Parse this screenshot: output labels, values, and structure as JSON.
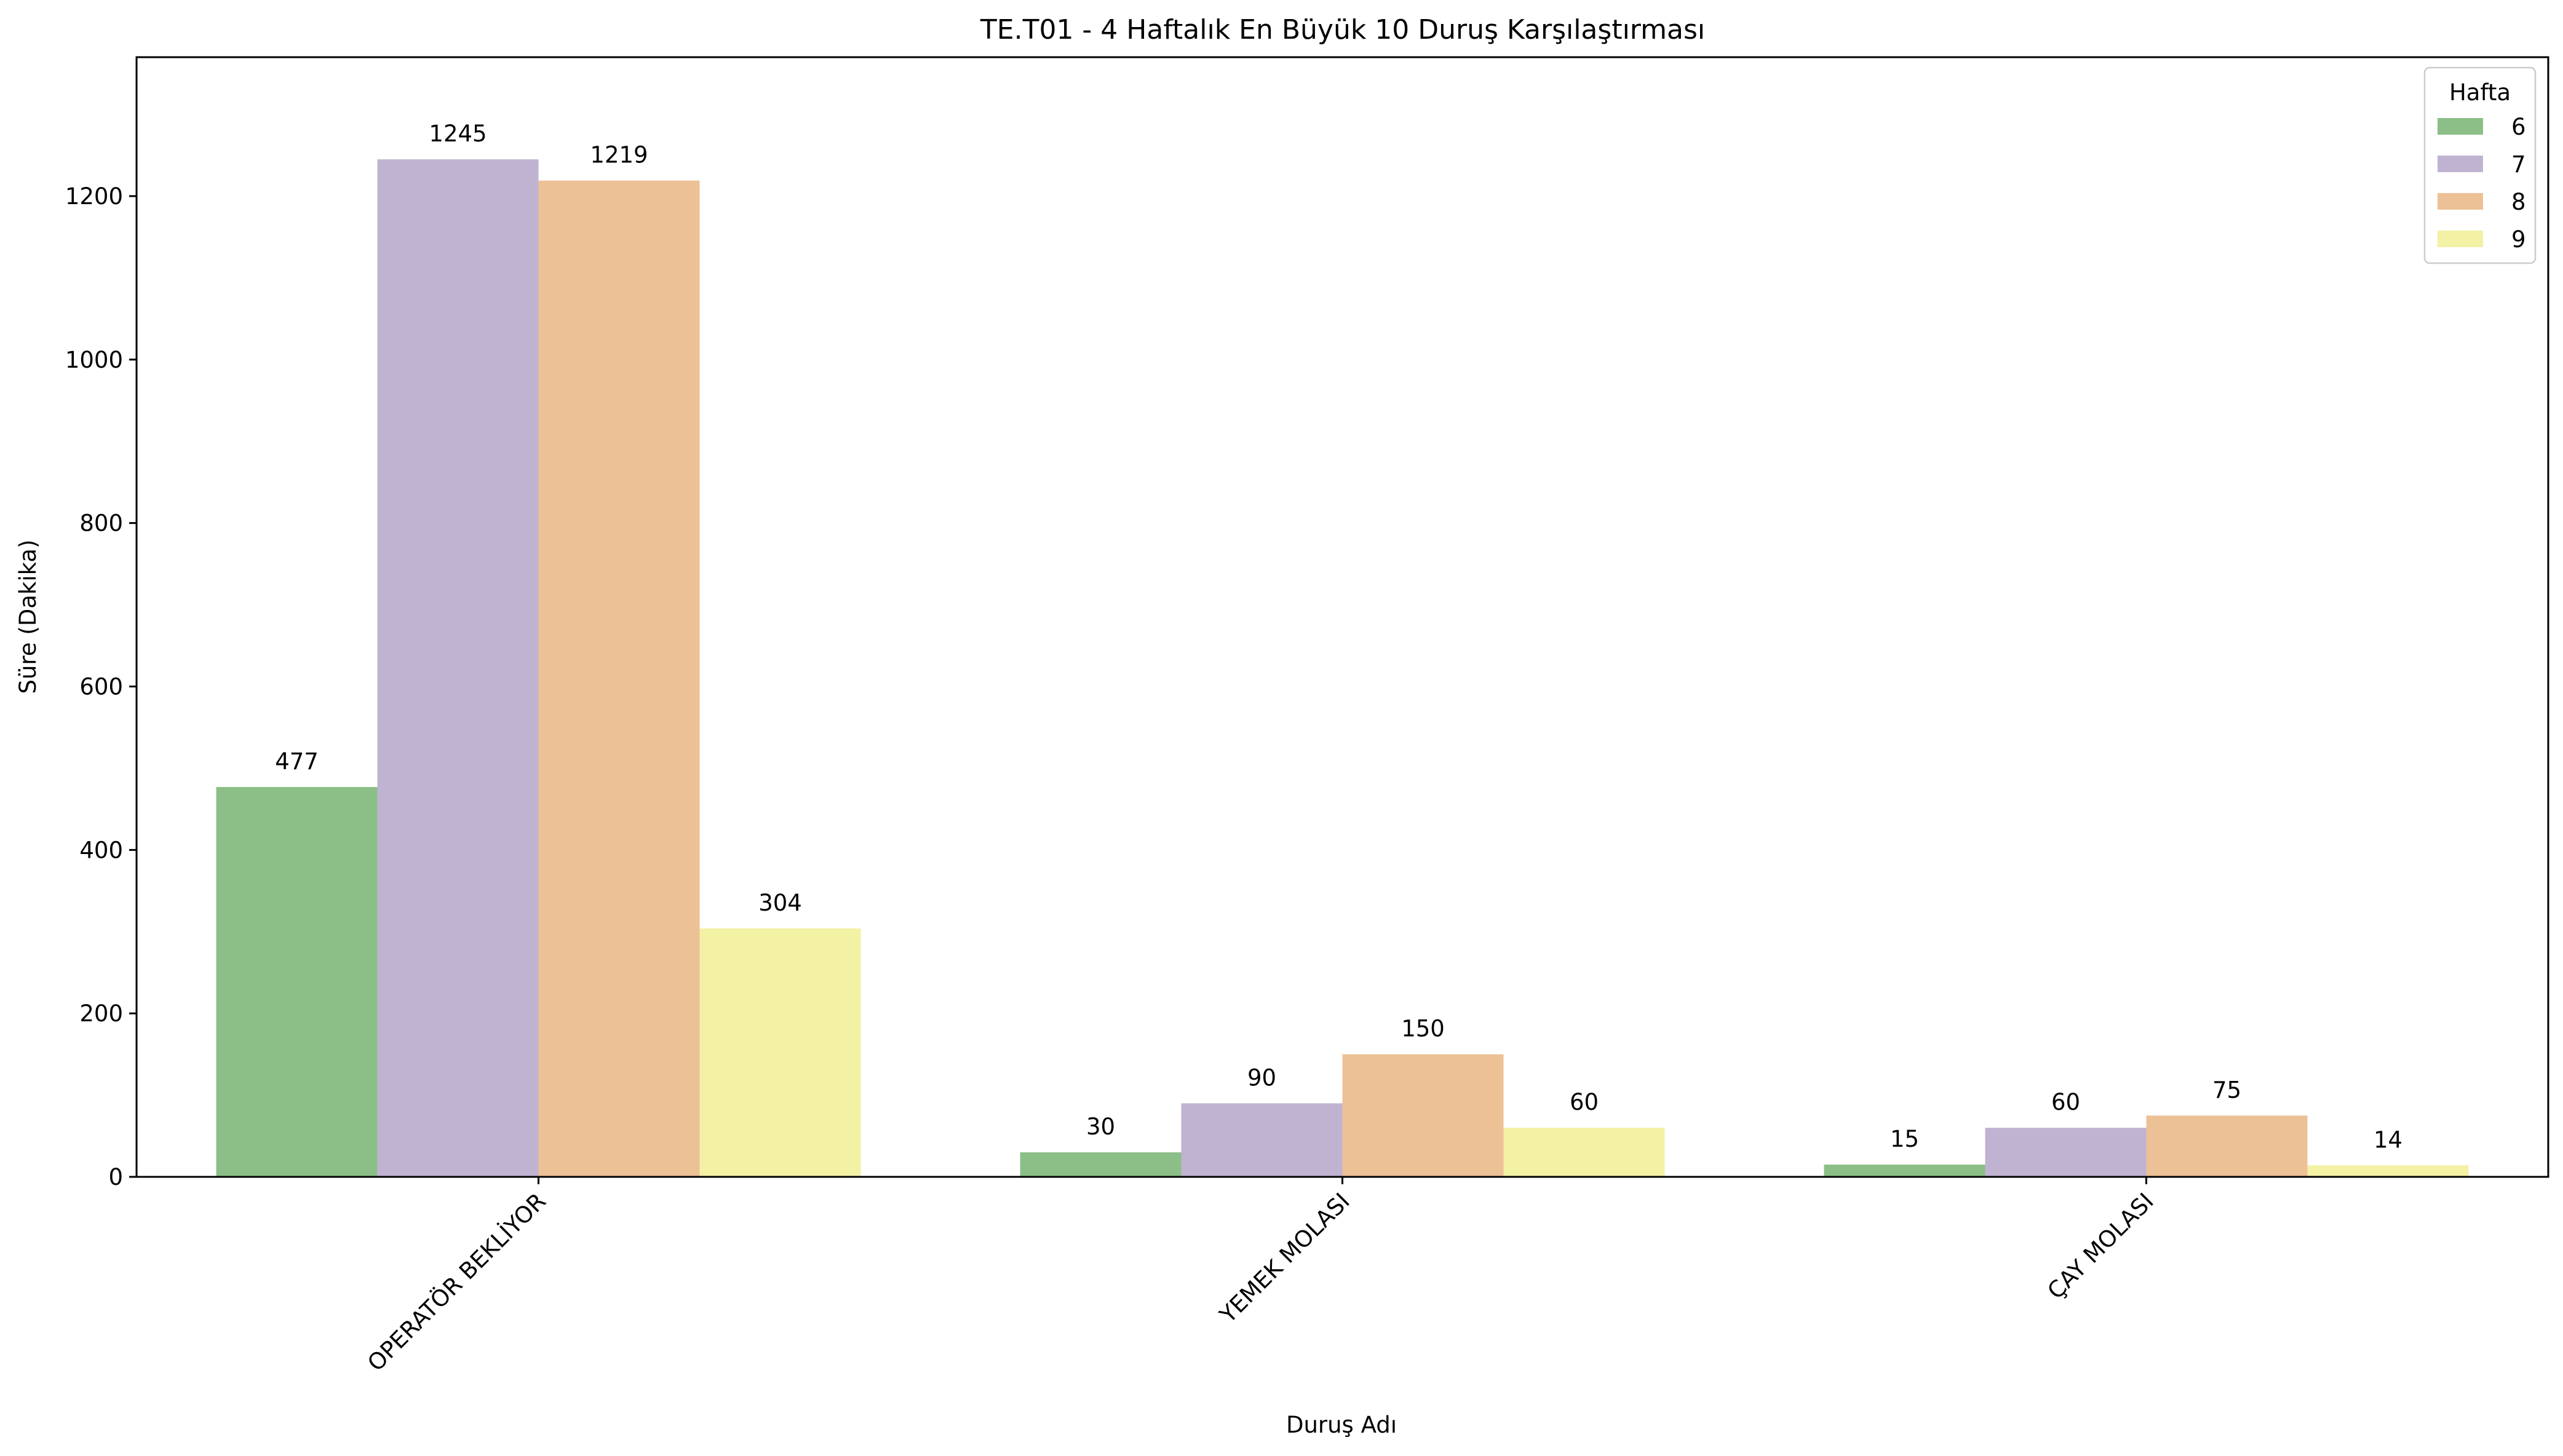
{
  "chart_data": {
    "type": "bar",
    "title": "TE.T01 - 4 Haftalık En Büyük 10 Duruş Karşılaştırması",
    "xlabel": "Duruş Adı",
    "ylabel": "Süre (Dakika)",
    "categories": [
      "OPERATÖR BEKLİYOR",
      "YEMEK MOLASI",
      "ÇAY MOLASI"
    ],
    "series": [
      {
        "name": "6",
        "color": "#8bbf87",
        "values": [
          477,
          30,
          15
        ]
      },
      {
        "name": "7",
        "color": "#bfb3d1",
        "values": [
          1245,
          90,
          60
        ]
      },
      {
        "name": "8",
        "color": "#edc196",
        "values": [
          1219,
          150,
          75
        ]
      },
      {
        "name": "9",
        "color": "#f2f1a4",
        "values": [
          304,
          60,
          14
        ]
      }
    ],
    "ylim": [
      0,
      1370
    ],
    "yticks": [
      0,
      200,
      400,
      600,
      800,
      1000,
      1200
    ],
    "legend": {
      "title": "Hafta",
      "placement": "top-right"
    },
    "grid": false
  }
}
